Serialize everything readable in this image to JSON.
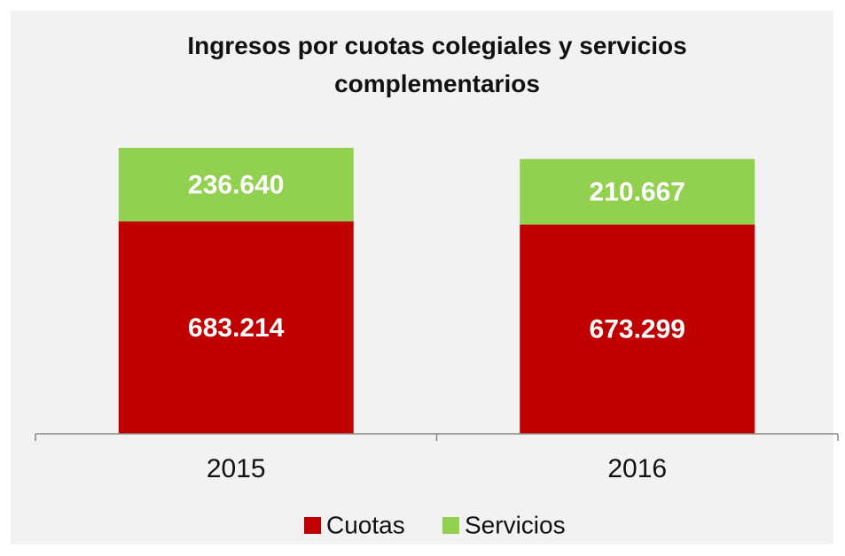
{
  "chart_data": {
    "type": "stacked_bar",
    "title": "Ingresos por cuotas colegiales y servicios complementarios",
    "categories": [
      "2015",
      "2016"
    ],
    "series": [
      {
        "name": "Cuotas",
        "color": "#c00000",
        "values": [
          683214,
          673299
        ],
        "value_labels": [
          "683.214",
          "673.299"
        ]
      },
      {
        "name": "Servicios",
        "color": "#92d050",
        "values": [
          236640,
          210667
        ],
        "value_labels": [
          "236.640",
          "210.667"
        ]
      }
    ],
    "legend": "bottom"
  }
}
